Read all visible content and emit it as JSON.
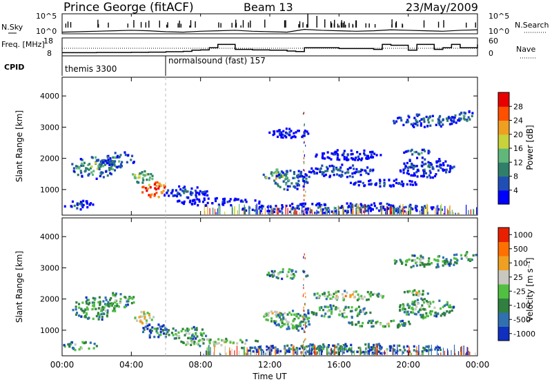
{
  "chart_data": [
    {
      "type": "line",
      "id": "header",
      "site": "Prince George (fitACF)",
      "beam": "Beam 13",
      "date": "23/May/2009",
      "left_label": "N.Sky",
      "right_label": "N.Search",
      "left_ticks": [
        "10^5",
        "10^0"
      ],
      "right_ticks": [
        "10^5",
        "10^0"
      ],
      "series": [
        {
          "name": "N.Sky",
          "x": [
            0,
            1,
            2,
            3,
            4,
            5,
            6,
            7,
            8,
            9,
            10,
            11,
            12,
            13,
            14,
            15,
            16,
            17,
            18,
            19,
            20,
            21,
            22,
            23,
            24
          ],
          "values": [
            1.2,
            1.3,
            1.4,
            1.5,
            1.6,
            1.5,
            1.3,
            1.2,
            1.4,
            1.5,
            1.6,
            1.4,
            1.3,
            1.2,
            1.8,
            1.6,
            1.5,
            1.4,
            1.5,
            1.7,
            1.6,
            1.5,
            1.4,
            1.6,
            1.7
          ]
        }
      ]
    },
    {
      "type": "line",
      "id": "freq",
      "left_label": "Freq. [MHz]",
      "right_label": "Nave",
      "left_ticks": [
        "18",
        "8"
      ],
      "right_ticks": [
        "60",
        "0"
      ],
      "series": [
        {
          "name": "Freq",
          "x": [
            0,
            1,
            2,
            3,
            4,
            5,
            6,
            7,
            7.5,
            8,
            8.5,
            9,
            10,
            11,
            12,
            13,
            13.5,
            14,
            15,
            16,
            17,
            18,
            18.5,
            19,
            20,
            20.5,
            21,
            21.5,
            22,
            22.5,
            23,
            24
          ],
          "values": [
            9.5,
            9.5,
            9.6,
            9.6,
            9.7,
            9.8,
            10.1,
            10.3,
            11.0,
            11.2,
            12.5,
            14.5,
            11.5,
            11.2,
            11.0,
            10.5,
            10.2,
            12.5,
            12.5,
            12.0,
            12.0,
            11.5,
            14.5,
            14.0,
            11.0,
            14.5,
            14.5,
            11.5,
            12.5,
            14.5,
            12.5,
            14.5
          ]
        },
        {
          "name": "Nave",
          "x": [
            0,
            24
          ],
          "values": [
            25,
            25
          ]
        }
      ]
    },
    {
      "type": "table",
      "id": "cpid",
      "label": "CPID",
      "entries": [
        {
          "start": 0,
          "text": "themis 3300"
        },
        {
          "start": 5.98,
          "text": "normalsound (fast) 157"
        }
      ]
    },
    {
      "type": "heatmap",
      "id": "power",
      "ylabel": "Slant Range [km]",
      "ylim": [
        180,
        4600
      ],
      "yticks": [
        "1000",
        "2000",
        "3000",
        "4000"
      ],
      "colorbar_label": "Power [dB]",
      "colorbar_ticks": [
        "4",
        "8",
        "12",
        "16",
        "20",
        "24",
        "28"
      ],
      "colors": [
        "#0000ff",
        "#1f4fb5",
        "#2f7f6a",
        "#5fb87a",
        "#c8d23a",
        "#f0a020",
        "#ff5000",
        "#e80000"
      ],
      "blobs": [
        {
          "t": 1.8,
          "r": 1700,
          "dt": 1.6,
          "dr": 450,
          "level": 0.45
        },
        {
          "t": 3.2,
          "r": 1950,
          "dt": 1.2,
          "dr": 300,
          "level": 0.35
        },
        {
          "t": 5.3,
          "r": 1000,
          "dt": 0.9,
          "dr": 300,
          "level": 0.95
        },
        {
          "t": 4.6,
          "r": 1400,
          "dt": 0.8,
          "dr": 250,
          "level": 0.55
        },
        {
          "t": 7.0,
          "r": 900,
          "dt": 1.8,
          "dr": 250,
          "level": 0.25
        },
        {
          "t": 1.0,
          "r": 500,
          "dt": 1.2,
          "dr": 180,
          "level": 0.2
        },
        {
          "t": 9.0,
          "r": 600,
          "dt": 3.0,
          "dr": 150,
          "level": 0.15
        },
        {
          "t": 12.3,
          "r": 1450,
          "dt": 0.9,
          "dr": 250,
          "level": 0.6
        },
        {
          "t": 13.2,
          "r": 1300,
          "dt": 1.3,
          "dr": 400,
          "level": 0.4
        },
        {
          "t": 16.0,
          "r": 1600,
          "dt": 2.4,
          "dr": 250,
          "level": 0.3
        },
        {
          "t": 18.5,
          "r": 1200,
          "dt": 2.5,
          "dr": 150,
          "level": 0.2
        },
        {
          "t": 21.0,
          "r": 1700,
          "dt": 2.0,
          "dr": 400,
          "level": 0.25
        },
        {
          "t": 21.0,
          "r": 3200,
          "dt": 2.5,
          "dr": 250,
          "level": 0.3
        },
        {
          "t": 23.2,
          "r": 3350,
          "dt": 0.9,
          "dr": 200,
          "level": 0.35
        },
        {
          "t": 16.5,
          "r": 2100,
          "dt": 2.5,
          "dr": 200,
          "level": 0.15
        },
        {
          "t": 20.5,
          "r": 2200,
          "dt": 1.0,
          "dr": 120,
          "level": 0.4
        },
        {
          "t": 16.0,
          "r": 400,
          "dt": 7.5,
          "dr": 200,
          "level": 0.25
        },
        {
          "t": 13.0,
          "r": 2800,
          "dt": 1.5,
          "dr": 200,
          "level": 0.12
        }
      ]
    },
    {
      "type": "heatmap",
      "id": "velocity",
      "xlabel": "Time UT",
      "ylabel": "Slant Range [km]",
      "xlim": [
        0,
        24
      ],
      "ylim": [
        180,
        4600
      ],
      "xticks": [
        "00:00",
        "04:00",
        "08:00",
        "12:00",
        "16:00",
        "20:00",
        "00:00"
      ],
      "yticks": [
        "1000",
        "2000",
        "3000",
        "4000"
      ],
      "colorbar_label": "Velocity [m s⁻¹]",
      "colorbar_ticks": [
        "1000",
        "500",
        "100",
        "25",
        "-25",
        "-100",
        "-500",
        "-1000"
      ],
      "colors": [
        "#1030c0",
        "#3070b0",
        "#308040",
        "#50c040",
        "#c8c8c0",
        "#f0a020",
        "#ff7000",
        "#e82000"
      ],
      "blobs": [
        {
          "t": 1.8,
          "r": 1700,
          "dt": 1.6,
          "dr": 450,
          "level": 0.5
        },
        {
          "t": 3.2,
          "r": 1950,
          "dt": 1.2,
          "dr": 300,
          "level": 0.5
        },
        {
          "t": 5.3,
          "r": 1000,
          "dt": 0.9,
          "dr": 300,
          "level": 0.35
        },
        {
          "t": 4.6,
          "r": 1400,
          "dt": 0.8,
          "dr": 250,
          "level": 0.7
        },
        {
          "t": 7.0,
          "r": 900,
          "dt": 1.8,
          "dr": 250,
          "level": 0.5
        },
        {
          "t": 1.0,
          "r": 500,
          "dt": 1.2,
          "dr": 180,
          "level": 0.5
        },
        {
          "t": 9.0,
          "r": 600,
          "dt": 3.0,
          "dr": 150,
          "level": 0.62
        },
        {
          "t": 12.3,
          "r": 1450,
          "dt": 0.9,
          "dr": 250,
          "level": 0.68
        },
        {
          "t": 13.2,
          "r": 1300,
          "dt": 1.3,
          "dr": 400,
          "level": 0.5
        },
        {
          "t": 16.0,
          "r": 1600,
          "dt": 2.4,
          "dr": 250,
          "level": 0.5
        },
        {
          "t": 18.5,
          "r": 1200,
          "dt": 2.5,
          "dr": 150,
          "level": 0.5
        },
        {
          "t": 21.0,
          "r": 1700,
          "dt": 2.0,
          "dr": 400,
          "level": 0.5
        },
        {
          "t": 21.0,
          "r": 3200,
          "dt": 2.5,
          "dr": 250,
          "level": 0.5
        },
        {
          "t": 23.2,
          "r": 3350,
          "dt": 0.9,
          "dr": 200,
          "level": 0.5
        },
        {
          "t": 16.5,
          "r": 2100,
          "dt": 2.5,
          "dr": 200,
          "level": 0.62
        },
        {
          "t": 20.5,
          "r": 2200,
          "dt": 1.0,
          "dr": 120,
          "level": 0.62
        },
        {
          "t": 16.0,
          "r": 400,
          "dt": 7.5,
          "dr": 200,
          "level": 0.35
        },
        {
          "t": 13.0,
          "r": 2800,
          "dt": 1.5,
          "dr": 200,
          "level": 0.5
        }
      ]
    }
  ]
}
